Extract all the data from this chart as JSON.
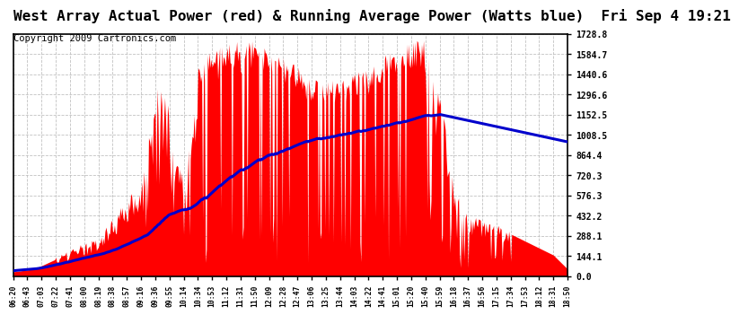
{
  "title": "West Array Actual Power (red) & Running Average Power (Watts blue)  Fri Sep 4 19:21",
  "copyright": "Copyright 2009 Cartronics.com",
  "y_ticks": [
    0.0,
    144.1,
    288.1,
    432.2,
    576.3,
    720.3,
    864.4,
    1008.5,
    1152.5,
    1296.6,
    1440.6,
    1584.7,
    1728.8
  ],
  "x_labels": [
    "06:20",
    "06:43",
    "07:03",
    "07:22",
    "07:41",
    "08:00",
    "08:19",
    "08:38",
    "08:57",
    "09:16",
    "09:36",
    "09:55",
    "10:14",
    "10:34",
    "10:53",
    "11:12",
    "11:31",
    "11:50",
    "12:09",
    "12:28",
    "12:47",
    "13:06",
    "13:25",
    "13:44",
    "14:03",
    "14:22",
    "14:41",
    "15:01",
    "15:20",
    "15:40",
    "15:59",
    "16:18",
    "16:37",
    "16:56",
    "17:15",
    "17:34",
    "17:53",
    "18:12",
    "18:31",
    "18:50"
  ],
  "plot_bg_color": "#ffffff",
  "grid_color": "#bbbbbb",
  "bar_color": "#ff0000",
  "line_color": "#0000cc",
  "title_color": "#000000",
  "ymax": 1728.8,
  "title_fontsize": 11.5,
  "copyright_fontsize": 7.5
}
